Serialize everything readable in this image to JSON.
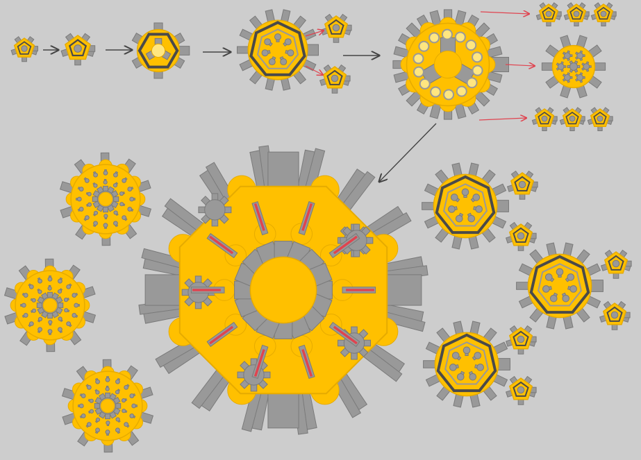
{
  "diagram": {
    "description_text": "",
    "colors": {
      "background": "#cdcdcd",
      "body_fill": "#ffc000",
      "body_stroke": "#e6ab00",
      "cannon_fill": "#999999",
      "cannon_stroke": "#7a7a7a",
      "dark_ring": "#4a4a4a",
      "inner_circle": "#ffe680",
      "arrow_dark": "#444444",
      "arrow_red": "#e0434f",
      "laser_red": "#e0434f"
    },
    "glyphs": {
      "small_pentagon_tank": "pentagon",
      "hexagon_tank": "hexagon",
      "heptagon_tank": "heptagon",
      "fortress_tank": "round-fortress",
      "star_core_tank": "star-core",
      "octagon_boss": "octagon-boss",
      "ring_fortress": "ring-fortress"
    },
    "nodes": [
      {
        "id": "stage-1",
        "kind": "small_pentagon_tank"
      },
      {
        "id": "stage-2",
        "kind": "small_pentagon_tank"
      },
      {
        "id": "stage-3",
        "kind": "hexagon_tank"
      },
      {
        "id": "stage-4",
        "kind": "heptagon_tank"
      },
      {
        "id": "stage-4-spawn-a",
        "kind": "small_pentagon_tank"
      },
      {
        "id": "stage-4-spawn-b",
        "kind": "small_pentagon_tank"
      },
      {
        "id": "stage-5",
        "kind": "fortress_tank"
      },
      {
        "id": "stage-5-top-1",
        "kind": "small_pentagon_tank"
      },
      {
        "id": "stage-5-top-2",
        "kind": "small_pentagon_tank"
      },
      {
        "id": "stage-5-top-3",
        "kind": "small_pentagon_tank"
      },
      {
        "id": "stage-5-mid",
        "kind": "star_core_tank"
      },
      {
        "id": "stage-5-bot-1",
        "kind": "small_pentagon_tank"
      },
      {
        "id": "stage-5-bot-2",
        "kind": "small_pentagon_tank"
      },
      {
        "id": "stage-5-bot-3",
        "kind": "small_pentagon_tank"
      },
      {
        "id": "final-boss",
        "kind": "octagon_boss"
      },
      {
        "id": "left-fortress-1",
        "kind": "ring_fortress"
      },
      {
        "id": "left-fortress-2",
        "kind": "ring_fortress"
      },
      {
        "id": "left-fortress-3",
        "kind": "ring_fortress"
      },
      {
        "id": "right-heptagon-1",
        "kind": "heptagon_tank"
      },
      {
        "id": "right-heptagon-2",
        "kind": "heptagon_tank"
      },
      {
        "id": "right-heptagon-3",
        "kind": "heptagon_tank"
      },
      {
        "id": "right-spawn-1",
        "kind": "small_pentagon_tank"
      },
      {
        "id": "right-spawn-2",
        "kind": "small_pentagon_tank"
      },
      {
        "id": "right-spawn-3",
        "kind": "small_pentagon_tank"
      },
      {
        "id": "right-spawn-4",
        "kind": "small_pentagon_tank"
      },
      {
        "id": "right-spawn-5",
        "kind": "small_pentagon_tank"
      },
      {
        "id": "right-spawn-6",
        "kind": "small_pentagon_tank"
      }
    ],
    "edges": [
      {
        "from": "stage-1",
        "to": "stage-2",
        "style": "dark"
      },
      {
        "from": "stage-2",
        "to": "stage-3",
        "style": "dark"
      },
      {
        "from": "stage-3",
        "to": "stage-4",
        "style": "dark"
      },
      {
        "from": "stage-4",
        "to": "stage-4-spawn-a",
        "style": "red"
      },
      {
        "from": "stage-4",
        "to": "stage-4-spawn-b",
        "style": "red"
      },
      {
        "from": "stage-4",
        "to": "stage-5",
        "style": "dark"
      },
      {
        "from": "stage-5",
        "to": "stage-5-top-1",
        "style": "red"
      },
      {
        "from": "stage-5",
        "to": "stage-5-mid",
        "style": "red"
      },
      {
        "from": "stage-5",
        "to": "stage-5-bot-1",
        "style": "red"
      },
      {
        "from": "stage-5",
        "to": "final-boss",
        "style": "dark"
      }
    ]
  }
}
